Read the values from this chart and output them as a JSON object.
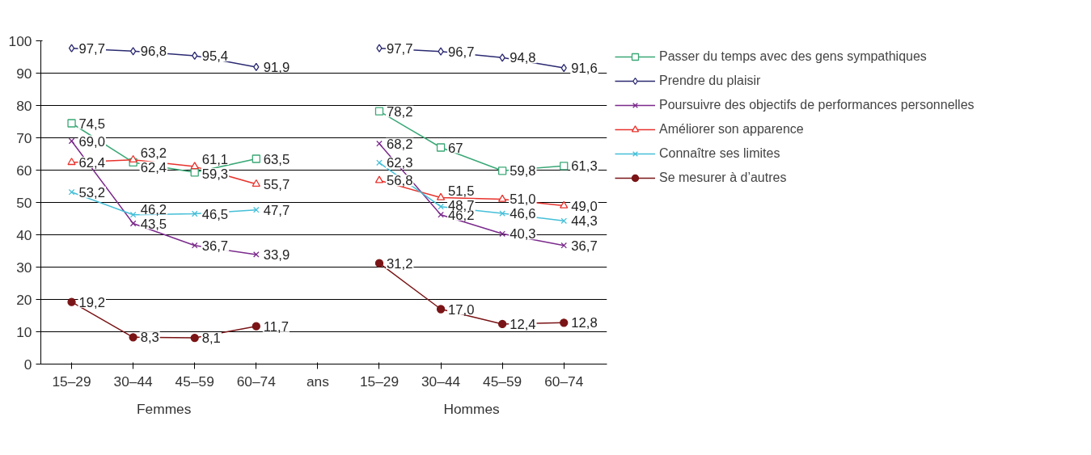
{
  "chart_data": {
    "type": "line",
    "categories": [
      "15–29",
      "30–44",
      "45–59",
      "60–74",
      "ans",
      "15–29",
      "30–44",
      "45–59",
      "60–74"
    ],
    "annotations": [
      "Femmes",
      "Hommes"
    ],
    "ylim": [
      0,
      100
    ],
    "yticks": [
      0,
      10,
      20,
      30,
      40,
      50,
      60,
      70,
      80,
      90,
      100
    ],
    "grid": "y",
    "legend": "right",
    "series": [
      {
        "name": "Passer du temps avec des gens sympathiques",
        "color": "#3aa876",
        "marker": "square",
        "values": [
          74.5,
          62.4,
          59.3,
          63.5,
          null,
          78.2,
          67,
          59.8,
          61.3
        ],
        "value_labels": [
          "74,5",
          "62,4",
          "59,3",
          "63,5",
          null,
          "78,2",
          "67",
          "59,8",
          "61,3"
        ]
      },
      {
        "name": "Prendre du plaisir",
        "color": "#2b2a72",
        "marker": "diamond",
        "values": [
          97.7,
          96.8,
          95.4,
          91.9,
          null,
          97.7,
          96.7,
          94.8,
          91.6
        ],
        "value_labels": [
          "97,7",
          "96,8",
          "95,4",
          "91,9",
          null,
          "97,7",
          "96,7",
          "94,8",
          "91,6"
        ]
      },
      {
        "name": "Poursuivre des objectifs de performances personnelles",
        "color": "#7b2a8c",
        "marker": "cross",
        "values": [
          69.0,
          43.5,
          36.7,
          33.9,
          null,
          68.2,
          46.2,
          40.3,
          36.7
        ],
        "value_labels": [
          "69,0",
          "43,5",
          "36,7",
          "33,9",
          null,
          "68,2",
          "46,2",
          "40,3",
          "36,7"
        ]
      },
      {
        "name": "Améliorer son apparence",
        "color": "#e8322c",
        "marker": "triangle",
        "values": [
          62.4,
          63.2,
          61.1,
          55.7,
          null,
          56.8,
          51.5,
          51.0,
          49.0
        ],
        "value_labels": [
          "62,4",
          "63,2",
          "61,1",
          "55,7",
          null,
          "56,8",
          "51,5",
          "51,0",
          "49,0"
        ]
      },
      {
        "name": "Connaître ses limites",
        "color": "#45bfd8",
        "marker": "cross",
        "values": [
          53.2,
          46.2,
          46.5,
          47.7,
          null,
          62.3,
          48.7,
          46.6,
          44.3
        ],
        "value_labels": [
          "53,2",
          "46,2",
          "46,5",
          "47,7",
          null,
          "62,3",
          "48,7",
          "46,6",
          "44,3"
        ]
      },
      {
        "name": "Se mesurer à d’autres",
        "color": "#7a1416",
        "marker": "circle",
        "values": [
          19.2,
          8.3,
          8.1,
          11.7,
          null,
          31.2,
          17.0,
          12.4,
          12.8
        ],
        "value_labels": [
          "19,2",
          "8,3",
          "8,1",
          "11,7",
          null,
          "31,2",
          "17,0",
          "12,4",
          "12,8"
        ]
      }
    ]
  }
}
